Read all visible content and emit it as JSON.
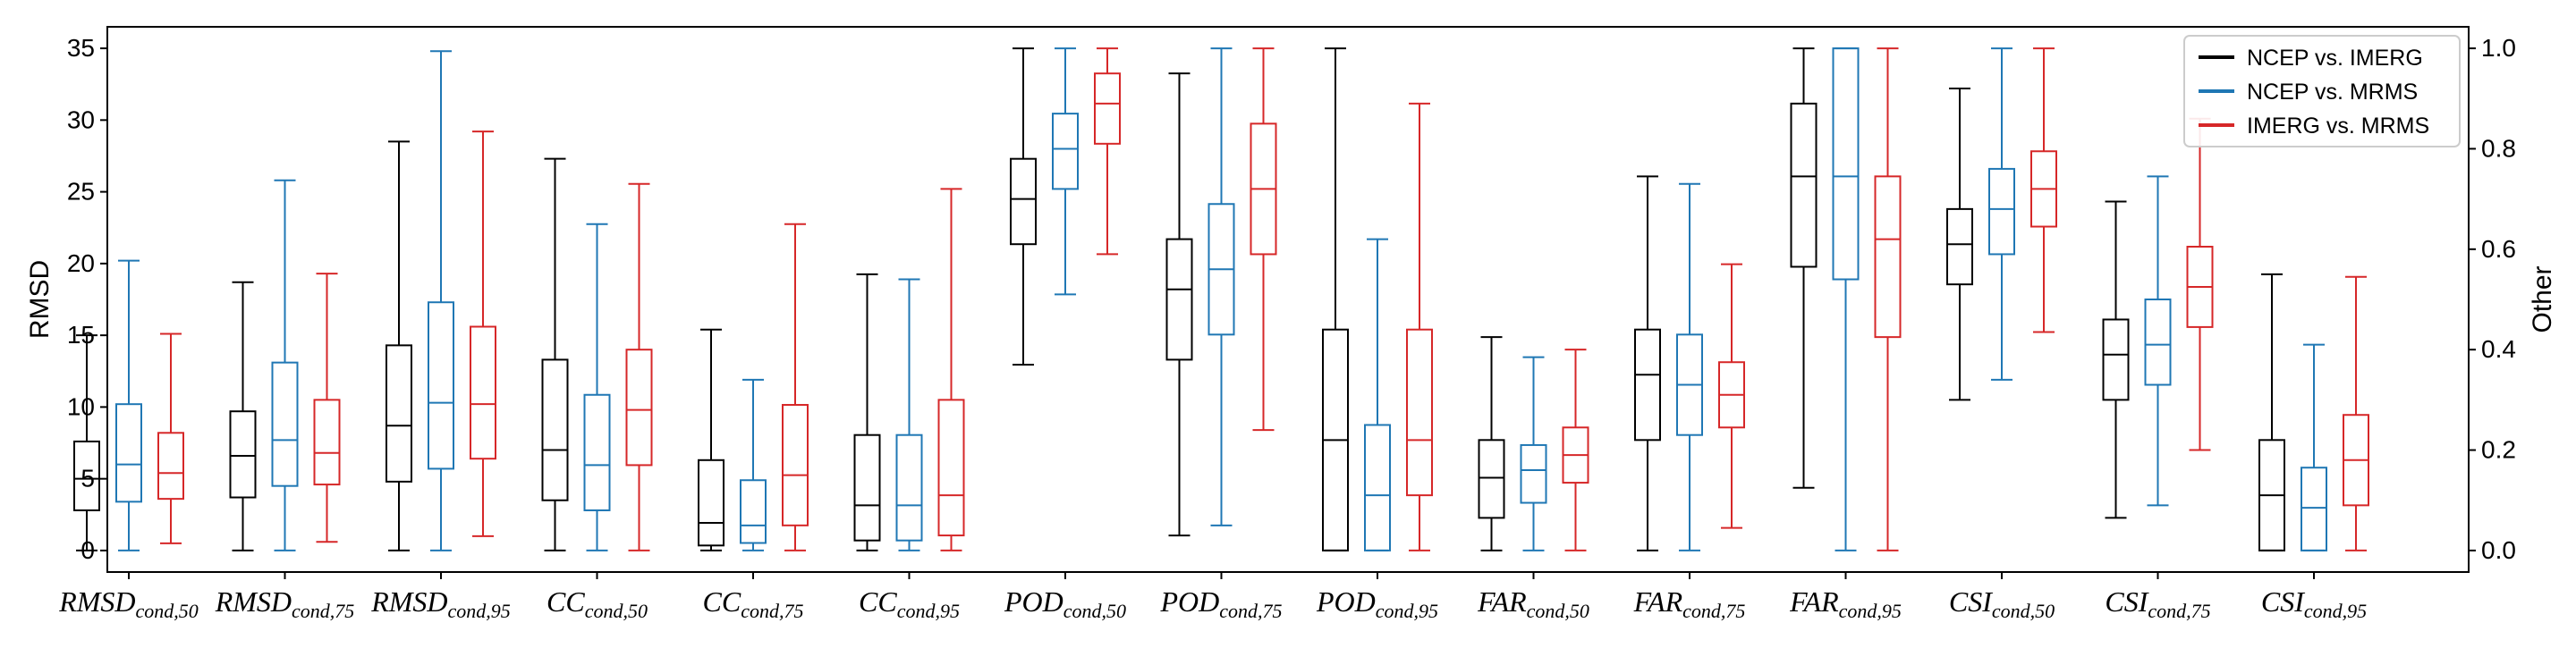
{
  "chart_data": {
    "type": "box",
    "categories": [
      {
        "base": "RMSD",
        "sub": "cond,50"
      },
      {
        "base": "RMSD",
        "sub": "cond,75"
      },
      {
        "base": "RMSD",
        "sub": "cond,95"
      },
      {
        "base": "CC",
        "sub": "cond,50"
      },
      {
        "base": "CC",
        "sub": "cond,75"
      },
      {
        "base": "CC",
        "sub": "cond,95"
      },
      {
        "base": "POD",
        "sub": "cond,50"
      },
      {
        "base": "POD",
        "sub": "cond,75"
      },
      {
        "base": "POD",
        "sub": "cond,95"
      },
      {
        "base": "FAR",
        "sub": "cond,50"
      },
      {
        "base": "FAR",
        "sub": "cond,75"
      },
      {
        "base": "FAR",
        "sub": "cond,95"
      },
      {
        "base": "CSI",
        "sub": "cond,50"
      },
      {
        "base": "CSI",
        "sub": "cond,75"
      },
      {
        "base": "CSI",
        "sub": "cond,95"
      }
    ],
    "y_left": {
      "label": "RMSD",
      "lim": [
        -1.5,
        36.5
      ],
      "ticks": [
        0,
        5,
        10,
        15,
        20,
        25,
        30,
        35
      ]
    },
    "y_right": {
      "label": "Other",
      "lim": [
        -0.04286,
        1.04286
      ],
      "ticks": [
        0.0,
        0.2,
        0.4,
        0.6,
        0.8,
        1.0
      ],
      "tick_labels": [
        "0.0",
        "0.2",
        "0.4",
        "0.6",
        "0.8",
        "1.0"
      ]
    },
    "left_axis_categories": 3,
    "legend": {
      "position": "top-right"
    },
    "grid": false,
    "series": [
      {
        "name": "NCEP vs. IMERG",
        "color": "#000000",
        "boxes": [
          {
            "whislo": 0.0,
            "q1": 2.8,
            "median": 5.0,
            "q3": 7.6,
            "whishi": 15.0
          },
          {
            "whislo": 0.0,
            "q1": 3.7,
            "median": 6.6,
            "q3": 9.7,
            "whishi": 18.7
          },
          {
            "whislo": 0.0,
            "q1": 4.8,
            "median": 8.7,
            "q3": 14.3,
            "whishi": 28.5
          },
          {
            "whislo": 0.0,
            "q1": 0.1,
            "median": 0.2,
            "q3": 0.38,
            "whishi": 0.78
          },
          {
            "whislo": 0.0,
            "q1": 0.01,
            "median": 0.055,
            "q3": 0.18,
            "whishi": 0.44
          },
          {
            "whislo": 0.0,
            "q1": 0.02,
            "median": 0.09,
            "q3": 0.23,
            "whishi": 0.55
          },
          {
            "whislo": 0.37,
            "q1": 0.61,
            "median": 0.7,
            "q3": 0.78,
            "whishi": 1.0
          },
          {
            "whislo": 0.03,
            "q1": 0.38,
            "median": 0.52,
            "q3": 0.62,
            "whishi": 0.95
          },
          {
            "whislo": 0.0,
            "q1": 0.0,
            "median": 0.22,
            "q3": 0.44,
            "whishi": 1.0
          },
          {
            "whislo": 0.0,
            "q1": 0.065,
            "median": 0.145,
            "q3": 0.22,
            "whishi": 0.425
          },
          {
            "whislo": 0.0,
            "q1": 0.22,
            "median": 0.35,
            "q3": 0.44,
            "whishi": 0.745
          },
          {
            "whislo": 0.125,
            "q1": 0.565,
            "median": 0.745,
            "q3": 0.89,
            "whishi": 1.0
          },
          {
            "whislo": 0.3,
            "q1": 0.53,
            "median": 0.61,
            "q3": 0.68,
            "whishi": 0.92
          },
          {
            "whislo": 0.065,
            "q1": 0.3,
            "median": 0.39,
            "q3": 0.46,
            "whishi": 0.695
          },
          {
            "whislo": 0.0,
            "q1": 0.0,
            "median": 0.11,
            "q3": 0.22,
            "whishi": 0.55
          }
        ]
      },
      {
        "name": "NCEP vs. MRMS",
        "color": "#1f77b4",
        "boxes": [
          {
            "whislo": 0.0,
            "q1": 3.4,
            "median": 6.0,
            "q3": 10.2,
            "whishi": 20.2
          },
          {
            "whislo": 0.0,
            "q1": 4.5,
            "median": 7.7,
            "q3": 13.1,
            "whishi": 25.8
          },
          {
            "whislo": 0.0,
            "q1": 5.7,
            "median": 10.3,
            "q3": 17.3,
            "whishi": 34.8
          },
          {
            "whislo": 0.0,
            "q1": 0.08,
            "median": 0.17,
            "q3": 0.31,
            "whishi": 0.65
          },
          {
            "whislo": 0.0,
            "q1": 0.015,
            "median": 0.05,
            "q3": 0.14,
            "whishi": 0.34
          },
          {
            "whislo": 0.0,
            "q1": 0.02,
            "median": 0.09,
            "q3": 0.23,
            "whishi": 0.54
          },
          {
            "whislo": 0.51,
            "q1": 0.72,
            "median": 0.8,
            "q3": 0.87,
            "whishi": 1.0
          },
          {
            "whislo": 0.05,
            "q1": 0.43,
            "median": 0.56,
            "q3": 0.69,
            "whishi": 1.0
          },
          {
            "whislo": 0.0,
            "q1": 0.0,
            "median": 0.11,
            "q3": 0.25,
            "whishi": 0.62
          },
          {
            "whislo": 0.0,
            "q1": 0.095,
            "median": 0.16,
            "q3": 0.21,
            "whishi": 0.385
          },
          {
            "whislo": 0.0,
            "q1": 0.23,
            "median": 0.33,
            "q3": 0.43,
            "whishi": 0.73
          },
          {
            "whislo": 0.0,
            "q1": 0.54,
            "median": 0.745,
            "q3": 1.0,
            "whishi": 1.0
          },
          {
            "whislo": 0.34,
            "q1": 0.59,
            "median": 0.68,
            "q3": 0.76,
            "whishi": 1.0
          },
          {
            "whislo": 0.09,
            "q1": 0.33,
            "median": 0.41,
            "q3": 0.5,
            "whishi": 0.745
          },
          {
            "whislo": 0.0,
            "q1": 0.0,
            "median": 0.085,
            "q3": 0.165,
            "whishi": 0.41
          }
        ]
      },
      {
        "name": "IMERG vs. MRMS",
        "color": "#d62728",
        "boxes": [
          {
            "whislo": 0.5,
            "q1": 3.6,
            "median": 5.4,
            "q3": 8.2,
            "whishi": 15.1
          },
          {
            "whislo": 0.6,
            "q1": 4.6,
            "median": 6.8,
            "q3": 10.5,
            "whishi": 19.3
          },
          {
            "whislo": 1.0,
            "q1": 6.4,
            "median": 10.2,
            "q3": 15.6,
            "whishi": 29.2
          },
          {
            "whislo": 0.0,
            "q1": 0.17,
            "median": 0.28,
            "q3": 0.4,
            "whishi": 0.73
          },
          {
            "whislo": 0.0,
            "q1": 0.05,
            "median": 0.15,
            "q3": 0.29,
            "whishi": 0.65
          },
          {
            "whislo": 0.0,
            "q1": 0.03,
            "median": 0.11,
            "q3": 0.3,
            "whishi": 0.72
          },
          {
            "whislo": 0.59,
            "q1": 0.81,
            "median": 0.89,
            "q3": 0.95,
            "whishi": 1.0
          },
          {
            "whislo": 0.24,
            "q1": 0.59,
            "median": 0.72,
            "q3": 0.85,
            "whishi": 1.0
          },
          {
            "whislo": 0.0,
            "q1": 0.11,
            "median": 0.22,
            "q3": 0.44,
            "whishi": 0.89
          },
          {
            "whislo": 0.0,
            "q1": 0.135,
            "median": 0.19,
            "q3": 0.245,
            "whishi": 0.4
          },
          {
            "whislo": 0.045,
            "q1": 0.245,
            "median": 0.31,
            "q3": 0.375,
            "whishi": 0.57
          },
          {
            "whislo": 0.0,
            "q1": 0.425,
            "median": 0.62,
            "q3": 0.745,
            "whishi": 1.0
          },
          {
            "whislo": 0.435,
            "q1": 0.645,
            "median": 0.72,
            "q3": 0.795,
            "whishi": 1.0
          },
          {
            "whislo": 0.2,
            "q1": 0.445,
            "median": 0.525,
            "q3": 0.605,
            "whishi": 0.86
          },
          {
            "whislo": 0.0,
            "q1": 0.09,
            "median": 0.18,
            "q3": 0.27,
            "whishi": 0.545
          }
        ]
      }
    ]
  }
}
